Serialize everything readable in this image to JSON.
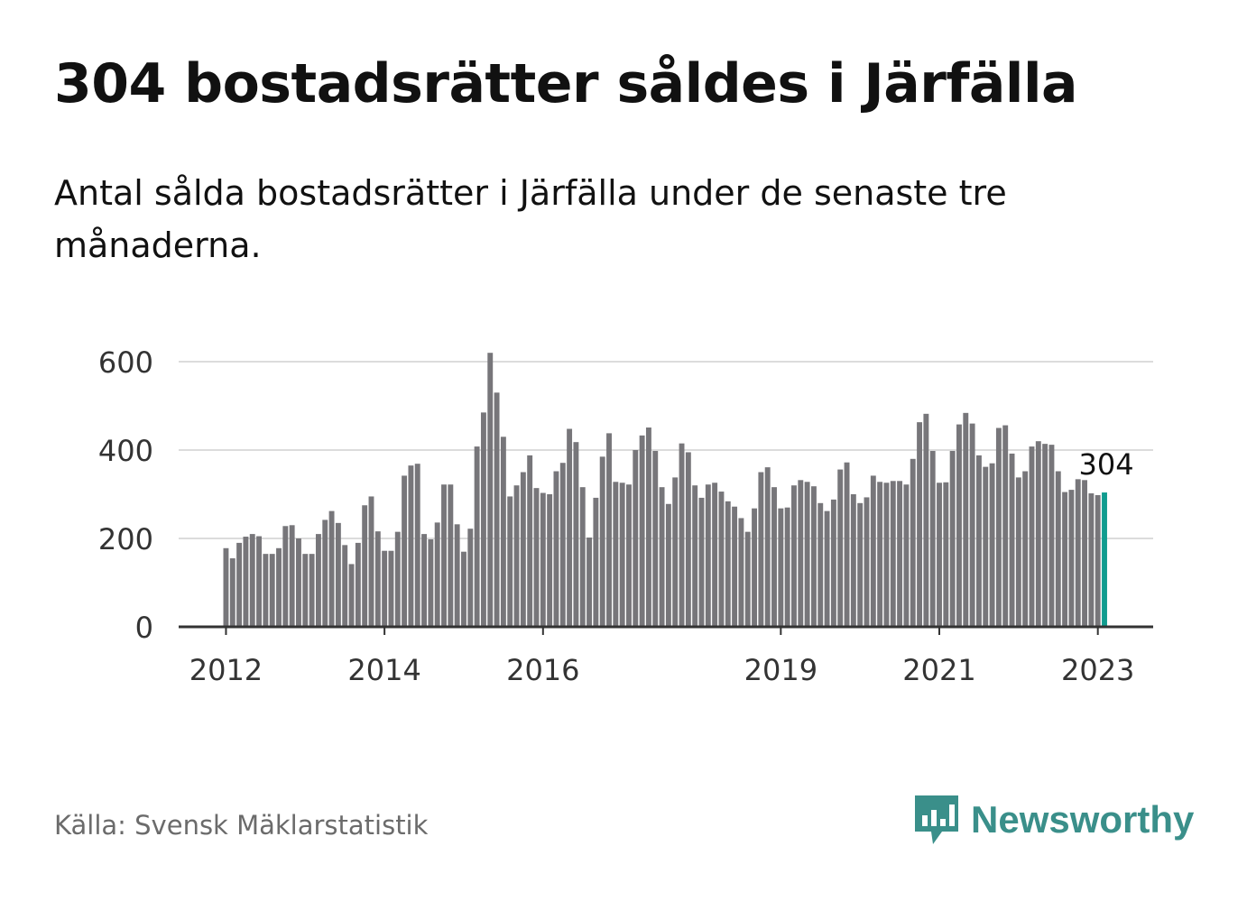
{
  "title": "304 bostadsrätter såldes i Järfälla",
  "subtitle": "Antal sålda bostadsrätter i Järfälla under de senaste tre månaderna.",
  "source": "Källa: Svensk Mäklarstatistik",
  "brand": {
    "name": "Newsworthy",
    "icon": "newsworthy-chart-bubble-icon",
    "color": "#3a8f8a"
  },
  "chart_data": {
    "type": "bar",
    "title": "304 bostadsrätter såldes i Järfälla",
    "subtitle": "Antal sålda bostadsrätter i Järfälla under de senaste tre månaderna.",
    "x_tick_labels": [
      "2012",
      "2014",
      "2016",
      "2019",
      "2021",
      "2023"
    ],
    "y_ticks": [
      0,
      200,
      400,
      600
    ],
    "ylim": [
      0,
      620
    ],
    "grid": "horizontal",
    "bar_color": "#77767a",
    "highlight_color": "#119c8f",
    "highlight_label": "304",
    "values": [
      178,
      155,
      190,
      204,
      210,
      205,
      165,
      165,
      178,
      228,
      230,
      200,
      165,
      165,
      210,
      242,
      262,
      235,
      185,
      142,
      190,
      275,
      295,
      216,
      172,
      172,
      215,
      342,
      365,
      369,
      210,
      198,
      236,
      322,
      322,
      232,
      170,
      222,
      408,
      485,
      620,
      530,
      430,
      295,
      320,
      350,
      388,
      314,
      303,
      300,
      352,
      371,
      448,
      418,
      316,
      202,
      292,
      385,
      438,
      328,
      326,
      322,
      400,
      433,
      451,
      398,
      316,
      278,
      338,
      415,
      395,
      320,
      292,
      322,
      326,
      306,
      284,
      272,
      246,
      215,
      268,
      350,
      361,
      316,
      268,
      270,
      320,
      332,
      328,
      318,
      280,
      262,
      288,
      356,
      372,
      300,
      280,
      293,
      342,
      328,
      326,
      330,
      330,
      322,
      380,
      463,
      482,
      398,
      326,
      327,
      398,
      458,
      484,
      460,
      388,
      362,
      370,
      450,
      456,
      392,
      338,
      352,
      408,
      420,
      414,
      412,
      352,
      305,
      310,
      334,
      332,
      302,
      298,
      304
    ]
  }
}
